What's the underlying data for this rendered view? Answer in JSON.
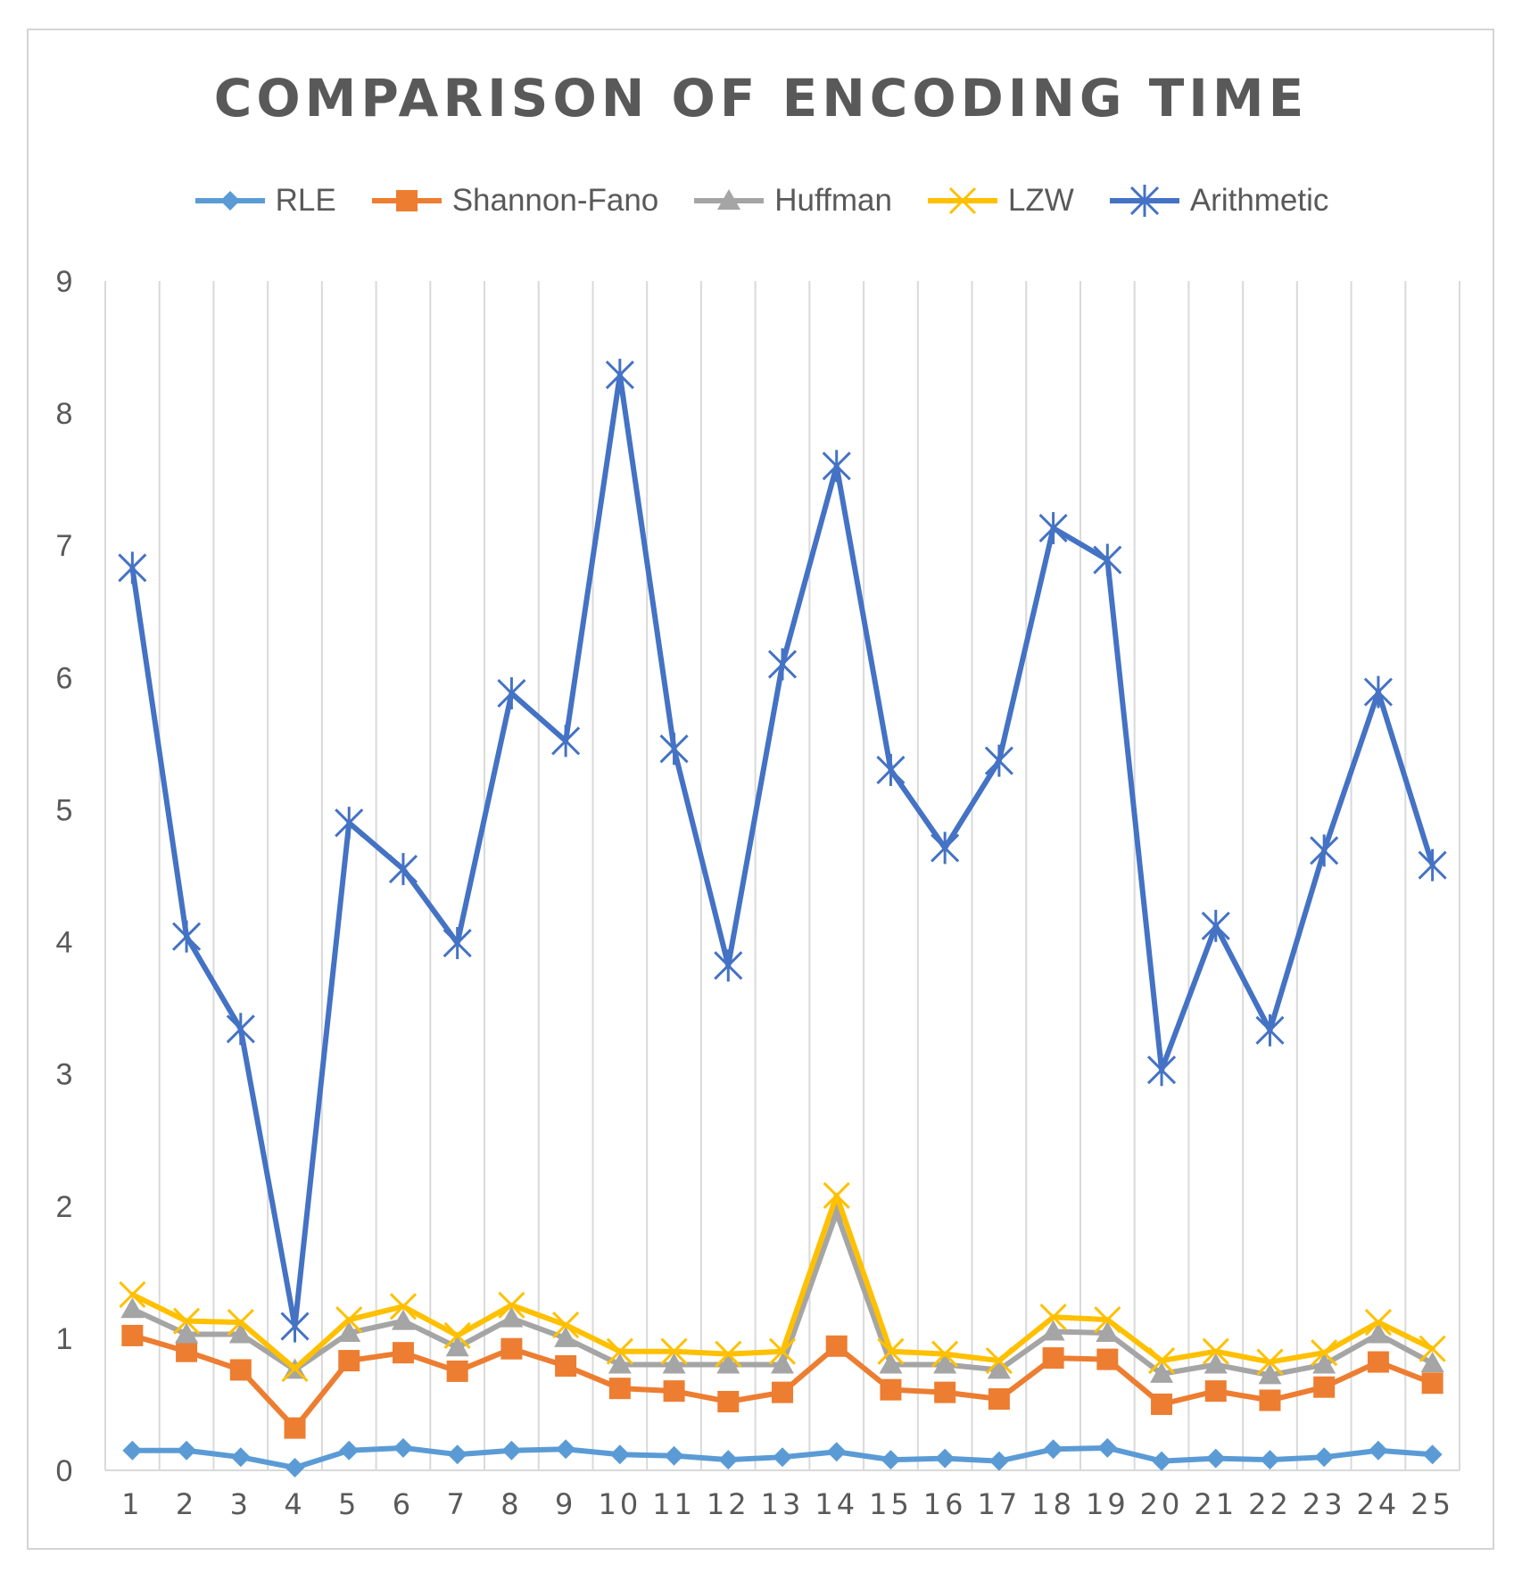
{
  "chart_data": {
    "type": "line",
    "title": "COMPARISON OF ENCODING TIME",
    "xlabel": "",
    "ylabel": "",
    "ylim": [
      0,
      9
    ],
    "yticks": [
      0,
      1,
      2,
      3,
      4,
      5,
      6,
      7,
      8,
      9
    ],
    "grid": "vertical",
    "legend": "top",
    "categories": [
      "1",
      "2",
      "3",
      "4",
      "5",
      "6",
      "7",
      "8",
      "9",
      "10",
      "11",
      "12",
      "13",
      "14",
      "15",
      "16",
      "17",
      "18",
      "19",
      "20",
      "21",
      "22",
      "23",
      "24",
      "25"
    ],
    "series": [
      {
        "name": "RLE",
        "color": "#5B9BD5",
        "marker": "diamond",
        "values": [
          0.15,
          0.15,
          0.1,
          0.02,
          0.15,
          0.17,
          0.12,
          0.15,
          0.16,
          0.12,
          0.11,
          0.08,
          0.1,
          0.14,
          0.08,
          0.09,
          0.07,
          0.16,
          0.17,
          0.07,
          0.09,
          0.08,
          0.1,
          0.15,
          0.12
        ]
      },
      {
        "name": "Shannon-Fano",
        "color": "#ED7D31",
        "marker": "square",
        "values": [
          1.02,
          0.9,
          0.76,
          0.32,
          0.83,
          0.89,
          0.75,
          0.92,
          0.79,
          0.62,
          0.6,
          0.52,
          0.59,
          0.94,
          0.61,
          0.59,
          0.54,
          0.85,
          0.84,
          0.5,
          0.6,
          0.53,
          0.63,
          0.82,
          0.66
        ]
      },
      {
        "name": "Huffman",
        "color": "#A5A5A5",
        "marker": "triangle",
        "values": [
          1.22,
          1.03,
          1.03,
          0.76,
          1.04,
          1.13,
          0.93,
          1.15,
          1.0,
          0.8,
          0.8,
          0.8,
          0.8,
          1.95,
          0.8,
          0.8,
          0.76,
          1.05,
          1.04,
          0.73,
          0.8,
          0.72,
          0.8,
          1.03,
          0.81
        ]
      },
      {
        "name": "LZW",
        "color": "#FFC000",
        "marker": "x",
        "values": [
          1.33,
          1.13,
          1.12,
          0.77,
          1.14,
          1.24,
          1.02,
          1.25,
          1.1,
          0.9,
          0.9,
          0.88,
          0.9,
          2.08,
          0.9,
          0.88,
          0.83,
          1.16,
          1.14,
          0.83,
          0.9,
          0.82,
          0.89,
          1.12,
          0.92
        ]
      },
      {
        "name": "Arithmetic",
        "color": "#4472C4",
        "marker": "asterisk",
        "values": [
          6.83,
          4.04,
          3.34,
          1.09,
          4.9,
          4.55,
          3.99,
          5.88,
          5.52,
          8.29,
          5.46,
          3.82,
          6.1,
          7.6,
          5.3,
          4.71,
          5.37,
          7.13,
          6.89,
          3.03,
          4.12,
          3.33,
          4.69,
          5.89,
          4.58
        ]
      }
    ]
  }
}
